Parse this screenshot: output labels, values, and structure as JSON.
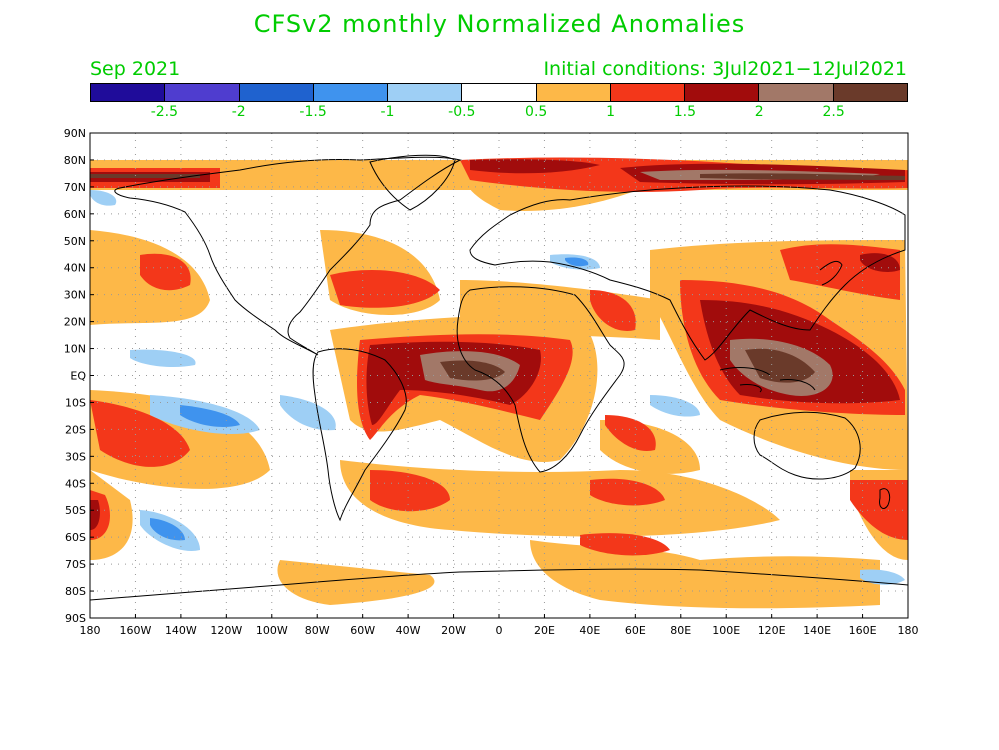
{
  "title": "CFSv2 monthly Normalized Anomalies",
  "month": "Sep 2021",
  "init_conditions": "Initial conditions: 3Jul2021−12Jul2021",
  "colorbar": {
    "colors": [
      "#1f0c9a",
      "#4f3dcf",
      "#1f62cf",
      "#3f93ee",
      "#9ecff5",
      "#ffffff",
      "#fdb848",
      "#f3371a",
      "#a10c0c",
      "#a27868",
      "#6a3a2a"
    ],
    "labels": [
      "-2.5",
      "-2",
      "-1.5",
      "-1",
      "-0.5",
      "0.5",
      "1",
      "1.5",
      "2",
      "2.5"
    ]
  },
  "map": {
    "lat_labels": [
      "90N",
      "80N",
      "70N",
      "60N",
      "50N",
      "40N",
      "30N",
      "20N",
      "10N",
      "EQ",
      "10S",
      "20S",
      "30S",
      "40S",
      "50S",
      "60S",
      "70S",
      "80S",
      "90S"
    ],
    "lon_labels": [
      "180",
      "160W",
      "140W",
      "120W",
      "100W",
      "80W",
      "60W",
      "40W",
      "20W",
      "0",
      "20E",
      "40E",
      "60E",
      "80E",
      "100E",
      "120E",
      "140E",
      "160E",
      "180"
    ]
  }
}
